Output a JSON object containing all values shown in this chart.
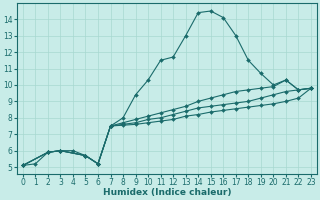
{
  "title": "",
  "xlabel": "Humidex (Indice chaleur)",
  "bg_color": "#c8ece8",
  "line_color": "#1a6b6b",
  "grid_color": "#a8d8d0",
  "xlim": [
    -0.5,
    23.5
  ],
  "ylim": [
    4.6,
    15.0
  ],
  "xticks": [
    0,
    1,
    2,
    3,
    4,
    5,
    6,
    7,
    8,
    9,
    10,
    11,
    12,
    13,
    14,
    15,
    16,
    17,
    18,
    19,
    20,
    21,
    22,
    23
  ],
  "yticks": [
    5,
    6,
    7,
    8,
    9,
    10,
    11,
    12,
    13,
    14
  ],
  "line1_x": [
    0,
    1,
    2,
    3,
    4,
    5,
    6,
    7,
    8,
    9,
    10,
    11,
    12,
    13,
    14,
    15,
    16,
    17,
    18,
    19,
    20,
    21,
    22,
    23
  ],
  "line1_y": [
    5.1,
    5.2,
    5.9,
    6.0,
    6.0,
    5.7,
    5.2,
    7.5,
    8.0,
    9.4,
    10.3,
    11.5,
    11.7,
    13.0,
    14.4,
    14.5,
    14.1,
    13.0,
    11.5,
    10.7,
    10.0,
    10.3,
    9.7,
    9.8
  ],
  "line2_x": [
    0,
    2,
    3,
    5,
    6,
    7,
    8,
    9,
    10,
    11,
    12,
    13,
    14,
    15,
    16,
    17,
    18,
    19,
    20,
    21,
    22,
    23
  ],
  "line2_y": [
    5.1,
    5.9,
    6.0,
    5.7,
    5.2,
    7.5,
    7.7,
    7.9,
    8.1,
    8.3,
    8.5,
    8.7,
    9.0,
    9.2,
    9.4,
    9.6,
    9.7,
    9.8,
    9.9,
    10.3,
    9.7,
    9.8
  ],
  "line3_x": [
    0,
    2,
    3,
    5,
    6,
    7,
    8,
    9,
    10,
    11,
    12,
    13,
    14,
    15,
    16,
    17,
    18,
    19,
    20,
    21,
    22,
    23
  ],
  "line3_y": [
    5.1,
    5.9,
    6.0,
    5.7,
    5.2,
    7.5,
    7.6,
    7.7,
    7.9,
    8.0,
    8.2,
    8.4,
    8.6,
    8.7,
    8.8,
    8.9,
    9.0,
    9.2,
    9.4,
    9.6,
    9.7,
    9.8
  ],
  "line4_x": [
    0,
    2,
    3,
    5,
    6,
    7,
    8,
    9,
    10,
    11,
    12,
    13,
    14,
    15,
    16,
    17,
    18,
    19,
    20,
    21,
    22,
    23
  ],
  "line4_y": [
    5.1,
    5.9,
    6.0,
    5.7,
    5.2,
    7.5,
    7.55,
    7.6,
    7.7,
    7.8,
    7.9,
    8.1,
    8.2,
    8.35,
    8.45,
    8.55,
    8.65,
    8.75,
    8.85,
    9.0,
    9.2,
    9.8
  ],
  "marker_size": 2.0,
  "linewidth": 0.8,
  "tick_fontsize": 5.5,
  "xlabel_fontsize": 6.5
}
